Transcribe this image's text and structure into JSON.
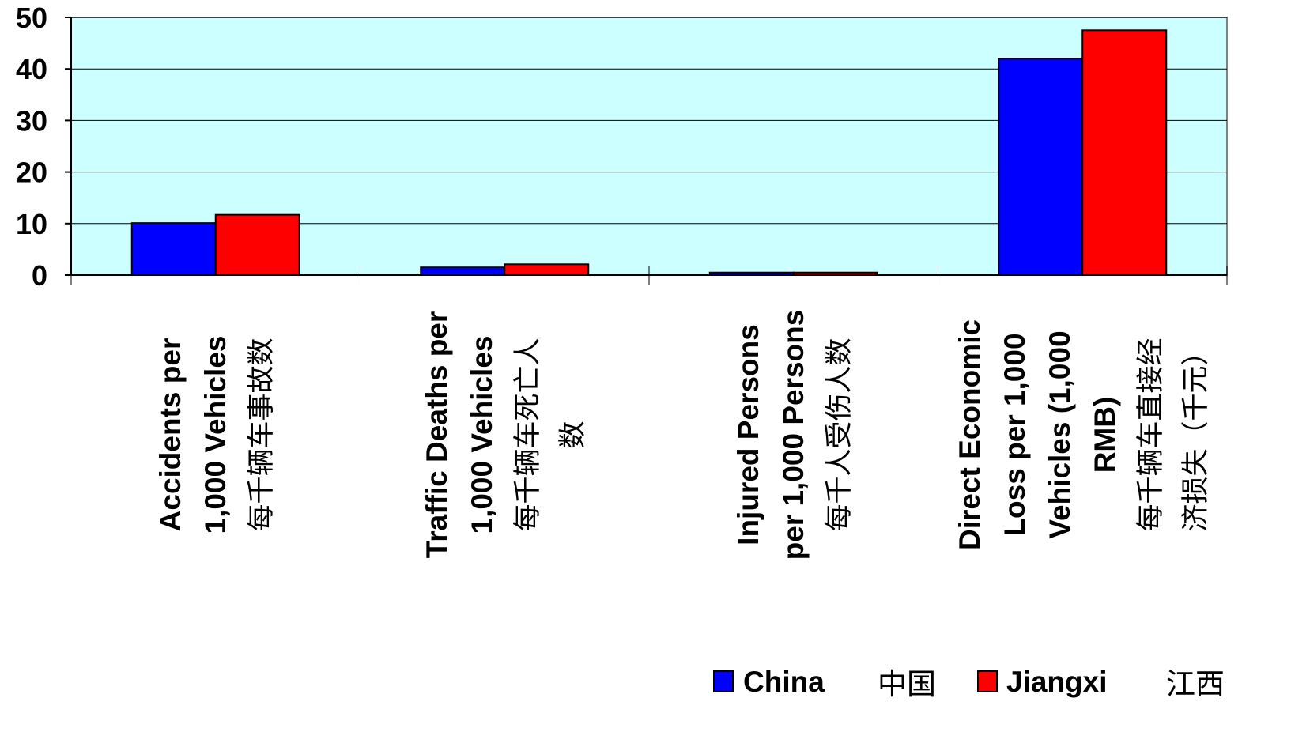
{
  "chart_data": {
    "type": "bar",
    "title": "",
    "xlabel": "",
    "ylabel": "",
    "ylim": [
      0,
      50
    ],
    "yticks": [
      "0",
      "10",
      "20",
      "30",
      "40",
      "50"
    ],
    "grid": true,
    "legend_position": "bottom-right",
    "categories": [
      {
        "en": [
          "Accidents per",
          "1,000 Vehicles"
        ],
        "zh": [
          "每千辆车事故数"
        ]
      },
      {
        "en": [
          "Traffic Deaths per",
          "1,000 Vehicles"
        ],
        "zh": [
          "每千辆车死亡人",
          "数"
        ]
      },
      {
        "en": [
          "Injured Persons",
          "per 1,000 Persons"
        ],
        "zh": [
          "每千人受伤人数"
        ]
      },
      {
        "en": [
          "Direct Economic",
          "Loss per 1,000",
          "Vehicles (1,000",
          "RMB)"
        ],
        "zh": [
          "每千辆车直接经",
          "济损失（千元）"
        ]
      }
    ],
    "series": [
      {
        "name": "China",
        "name_zh": "中国",
        "color": "#0000ff",
        "values": [
          10.1,
          1.5,
          0.5,
          42
        ]
      },
      {
        "name": "Jiangxi",
        "name_zh": "江西",
        "color": "#ff0000",
        "values": [
          11.7,
          2.1,
          0.5,
          47.5
        ]
      }
    ],
    "plot_background": "#ccffff"
  }
}
